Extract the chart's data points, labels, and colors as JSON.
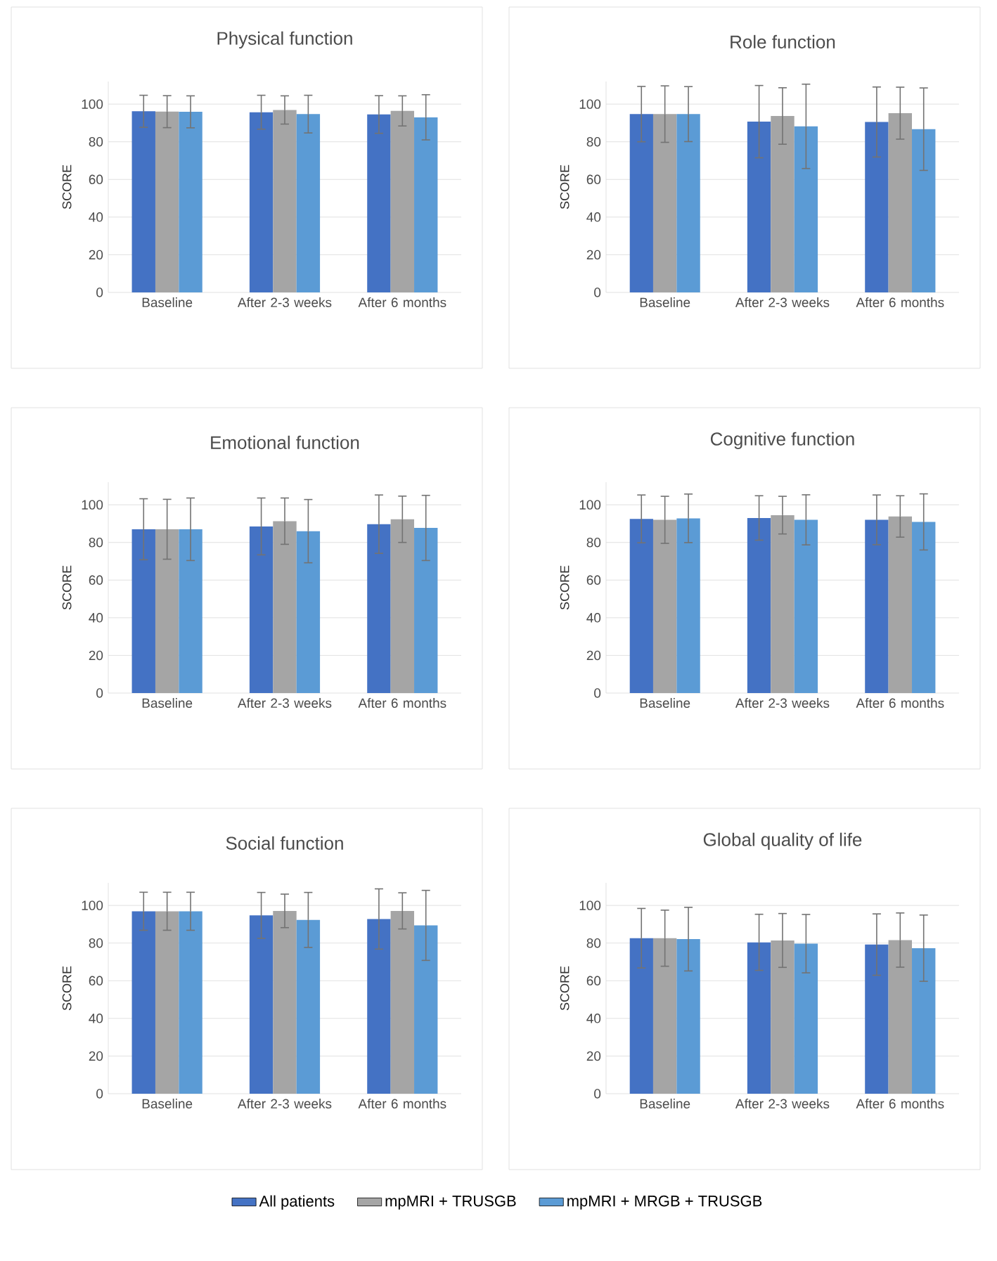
{
  "chart_data": [
    {
      "type": "bar",
      "title": "Physical function",
      "ylabel": "SCORE",
      "categories": [
        "Baseline",
        "After 2-3 weeks",
        "After 6 months"
      ],
      "ylim": [
        0,
        112
      ],
      "yticks": [
        0,
        20,
        40,
        60,
        80,
        100
      ],
      "grid": "y",
      "series": [
        {
          "color": "#4472c4",
          "values": [
            96.2,
            95.7,
            94.5
          ],
          "errors": [
            8.5,
            9,
            10
          ]
        },
        {
          "color": "#a5a5a5",
          "values": [
            96,
            96.9,
            96.4
          ],
          "errors": [
            8.5,
            7.5,
            8
          ]
        },
        {
          "color": "#5b9bd5",
          "values": [
            95.9,
            94.7,
            93
          ],
          "errors": [
            8.5,
            10,
            12
          ]
        }
      ]
    },
    {
      "type": "bar",
      "title": "Role function",
      "ylabel": "SCORE",
      "categories": [
        "Baseline",
        "After 2-3 weeks",
        "After 6 months"
      ],
      "ylim": [
        0,
        112
      ],
      "yticks": [
        0,
        20,
        40,
        60,
        80,
        100
      ],
      "grid": "y",
      "series": [
        {
          "color": "#4472c4",
          "values": [
            94.7,
            90.7,
            90.5
          ],
          "errors": [
            14.7,
            19.2,
            18.6
          ]
        },
        {
          "color": "#a5a5a5",
          "values": [
            94.7,
            93.7,
            95.2
          ],
          "errors": [
            15,
            15,
            13.8
          ]
        },
        {
          "color": "#5b9bd5",
          "values": [
            94.7,
            88.2,
            86.7
          ],
          "errors": [
            14.6,
            22.4,
            21.9
          ]
        }
      ]
    },
    {
      "type": "bar",
      "title": "Emotional function",
      "ylabel": "SCORE",
      "categories": [
        "Baseline",
        "After 2-3 weeks",
        "After 6 months"
      ],
      "ylim": [
        0,
        112
      ],
      "yticks": [
        0,
        20,
        40,
        60,
        80,
        100
      ],
      "grid": "y",
      "series": [
        {
          "color": "#4472c4",
          "values": [
            87,
            88.5,
            89.7
          ],
          "errors": [
            16.2,
            15.1,
            15.5
          ]
        },
        {
          "color": "#a5a5a5",
          "values": [
            87,
            91.3,
            92.3
          ],
          "errors": [
            15.9,
            12.3,
            12.3
          ]
        },
        {
          "color": "#5b9bd5",
          "values": [
            87,
            86,
            87.7
          ],
          "errors": [
            16.6,
            16.8,
            17.3
          ]
        }
      ]
    },
    {
      "type": "bar",
      "title": "Cognitive function",
      "ylabel": "SCORE",
      "categories": [
        "Baseline",
        "After 2-3 weeks",
        "After 6 months"
      ],
      "ylim": [
        0,
        112
      ],
      "yticks": [
        0,
        20,
        40,
        60,
        80,
        100
      ],
      "grid": "y",
      "series": [
        {
          "color": "#4472c4",
          "values": [
            92.5,
            93,
            92
          ],
          "errors": [
            12.7,
            11.8,
            13.2
          ]
        },
        {
          "color": "#a5a5a5",
          "values": [
            92,
            94.5,
            93.8
          ],
          "errors": [
            12.5,
            10,
            11
          ]
        },
        {
          "color": "#5b9bd5",
          "values": [
            92.8,
            92,
            90.9
          ],
          "errors": [
            12.9,
            13.3,
            14.9
          ]
        }
      ]
    },
    {
      "type": "bar",
      "title": "Social function",
      "ylabel": "SCORE",
      "categories": [
        "Baseline",
        "After 2-3 weeks",
        "After 6 months"
      ],
      "ylim": [
        0,
        112
      ],
      "yticks": [
        0,
        20,
        40,
        60,
        80,
        100
      ],
      "grid": "y",
      "series": [
        {
          "color": "#4472c4",
          "values": [
            96.9,
            94.7,
            92.8
          ],
          "errors": [
            10.1,
            12.2,
            16
          ]
        },
        {
          "color": "#a5a5a5",
          "values": [
            96.9,
            97.1,
            97.1
          ],
          "errors": [
            10.1,
            8.9,
            9.6
          ]
        },
        {
          "color": "#5b9bd5",
          "values": [
            96.9,
            92.3,
            89.4
          ],
          "errors": [
            10.1,
            14.6,
            18.6
          ]
        }
      ]
    },
    {
      "type": "bar",
      "title": "Global quality of life",
      "ylabel": "SCORE",
      "categories": [
        "Baseline",
        "After 2-3 weeks",
        "After 6 months"
      ],
      "ylim": [
        0,
        112
      ],
      "yticks": [
        0,
        20,
        40,
        60,
        80,
        100
      ],
      "grid": "y",
      "legend": "bottom",
      "series": [
        {
          "name": "All patients",
          "color": "#4472c4",
          "values": [
            82.6,
            80.4,
            79.2
          ],
          "errors": [
            15.8,
            14.9,
            16.3
          ]
        },
        {
          "name": "mpMRI + TRUSGB",
          "color": "#a5a5a5",
          "values": [
            82.6,
            81.4,
            81.6
          ],
          "errors": [
            14.9,
            14.3,
            14.4
          ]
        },
        {
          "name": "mpMRI + MRGB + TRUSGB",
          "color": "#5b9bd5",
          "values": [
            82.1,
            79.7,
            77.3
          ],
          "errors": [
            16.9,
            15.5,
            17.6
          ]
        }
      ]
    }
  ]
}
